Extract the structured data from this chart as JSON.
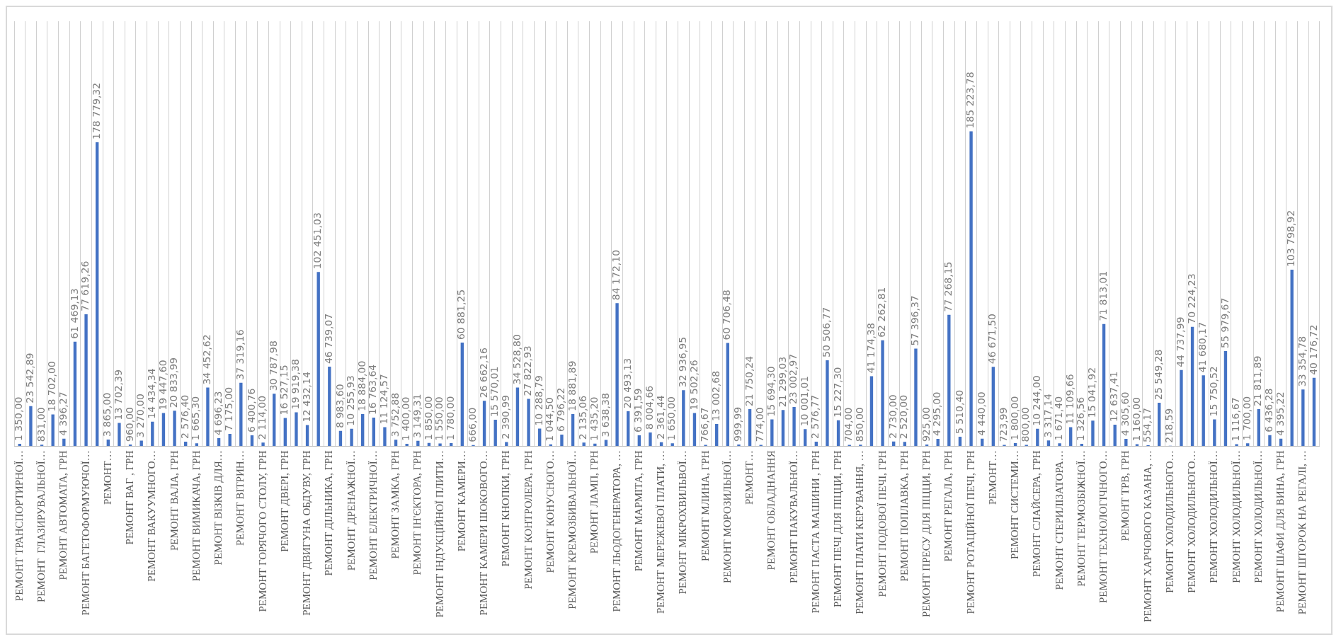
{
  "chart_data": {
    "type": "bar",
    "color": "#4472c4",
    "grid": "x",
    "categories": [
      "РЕМОНТ ТРАНСПОРТИРНОЇ…",
      null,
      "РЕМОНТ  ГЛАЗИРУВАЛЬНОЇ…",
      null,
      "РЕМОНТ АВТОМАТА, ГРН",
      null,
      "РЕМОНТ БАГЕТОФОРМУЮЧОЇ…",
      null,
      "РЕМОНТ…",
      null,
      "РЕМОНТ ВАГ , ГРН",
      null,
      "РЕМОНТ ВАКУУМНОГО…",
      null,
      "РЕМОНТ ВАЛА, ГРН",
      null,
      "РЕМОНТ ВИМИКАЧА, ГРН",
      null,
      "РЕМОНТ ВІЗКІВ ДЛЯ…",
      null,
      "РЕМОНТ ВІТРИН…",
      null,
      "РЕМОНТ ГОРЯЧОГО СТОЛУ, ГРН",
      null,
      "РЕМОНТ ДВЕРІ, ГРН",
      null,
      "РЕМОНТ ДВИГУНА ОБДУВУ, ГРН",
      null,
      "РЕМОНТ ДІЛЬНИКА, ГРН",
      null,
      "РЕМОНТ ДРЕНАЖНОЇ…",
      null,
      "РЕМОНТ ЕЛЕКТРИЧНОЇ…",
      null,
      "РЕМОНТ ЗАМКА, ГРН",
      null,
      "РЕМОНТ ІН'ЄКТОРА, ГРН",
      null,
      "РЕМОНТ ІНДУКЦІЙНОЇ ПЛИТИ…",
      null,
      "РЕМОНТ КАМЕРИ…",
      null,
      "РЕМОНТ КАМЕРИ ШОКОВОГО…",
      null,
      "РЕМОНТ КНОПКИ, ГРН",
      null,
      "РЕМОНТ КОНТРОЛЕРА, ГРН",
      null,
      "РЕМОНТ КОНУСНОГО…",
      null,
      "РЕМОНТ КРЕМОЗБИВАЛЬНОЇ…",
      null,
      "РЕМОНТ ЛАМП, ГРН",
      null,
      "РЕМОНТ ЛЬОДОГЕНЕРАТОРА, …",
      null,
      "РЕМОНТ МАРМІТА, ГРН",
      null,
      "РЕМОНТ МЕРЕЖЕВОЇ ПЛАТИ, …",
      null,
      "РЕМОНТ МІКРОХВИЛЬВОЇ…",
      null,
      "РЕМОНТ МЛИНА, ГРН",
      null,
      "РЕМОНТ МОРОЗИЛЬНОЇ…",
      null,
      "РЕМОНТ…",
      null,
      "РЕМОНТ ОБЛАДНАННЯ",
      null,
      "РЕМОНТ ПАКУВАЛЬНОЇ…",
      null,
      "РЕМОНТ ПАСТА МАШИНИ , ГРН",
      null,
      "РЕМОНТ ПЕЧІ ДЛЯ ПІЦЦИ, ГРН",
      null,
      "РЕМОНТ ПЛАТИ КЕРУВАННЯ, …",
      null,
      "РЕМОНТ ПОДОВОЇ ПЕЧІ, ГРН",
      null,
      "РЕМОНТ ПОПЛАВКА, ГРН",
      null,
      "РЕМОНТ ПРЕСУ ДЛЯ ПІЦЦИ, ГРН",
      null,
      "РЕМОНТ РЕГАЛА, ГРН",
      null,
      "РЕМОНТ РОТАЦІЙНОЇ ПЕЧІ, ГРН",
      null,
      "РЕМОНТ…",
      null,
      "РЕМОНТ СИСТЕМИ…",
      null,
      "РЕМОНТ СЛАЙСЕРА, ГРН",
      null,
      "РЕМОНТ СТЕРИЛІЗАТОРА…",
      null,
      "РЕМОНТ ТЕРМОЗБІЖНОЇ…",
      null,
      "РЕМОНТ ТЕХНОЛОГІЧНОГО…",
      null,
      "РЕМОНТ ТРВ, ГРН",
      null,
      "РЕМОНТ ХАРЧОВОГО КАЗАНА, …",
      null,
      "РЕМОНТ ХОЛОДИЛЬНОГО…",
      null,
      "РЕМОНТ ХОЛОДИЛЬНОГО…",
      null,
      "РЕМОНТ ХОЛОДИЛЬНОЇ…",
      null,
      "РЕМОНТ ХОЛОДИЛЬНОЇ…",
      null,
      "РЕМОНТ ХОЛОДИЛЬНОЇ…",
      null,
      "РЕМОНТ ШАФИ ДЛЯ ВИНА, ГРН",
      null,
      "РЕМОНТ ШТОРОК НА РЕГАЛІ, …",
      null
    ],
    "values": [
      1350.0,
      23542.89,
      831.0,
      18702.0,
      4396.27,
      61469.13,
      77619.26,
      178779.32,
      3865.0,
      13702.39,
      960.0,
      3270.0,
      14434.34,
      19447.6,
      20833.99,
      2576.4,
      1665.3,
      34452.62,
      4696.23,
      7175.0,
      37319.16,
      6400.76,
      2114.0,
      30787.98,
      16527.15,
      19919.38,
      12432.14,
      102451.03,
      46739.07,
      8983.6,
      10255.93,
      18884.0,
      16763.64,
      11124.57,
      3752.88,
      1400.0,
      3149.31,
      1850.0,
      1550.0,
      1780.0,
      60881.25,
      666.0,
      26662.16,
      15570.01,
      2390.99,
      34528.8,
      27822.93,
      10288.79,
      1044.5,
      6796.22,
      18881.89,
      2135.06,
      1435.2,
      3638.38,
      84172.1,
      20493.13,
      6391.59,
      8004.66,
      2361.44,
      1650.0,
      32936.95,
      19502.26,
      766.67,
      13002.68,
      60706.48,
      999.99,
      21750.24,
      774.0,
      15694.3,
      21299.03,
      23002.97,
      10001.01,
      2576.77,
      50506.77,
      15227.3,
      704.0,
      850.0,
      41174.38,
      62262.81,
      2730.0,
      2520.0,
      57396.37,
      925.0,
      4295.0,
      77268.15,
      5510.4,
      185223.78,
      4440.0,
      46671.5,
      723.99,
      1800.0,
      800.0,
      10244.0,
      3317.14,
      1671.4,
      11109.66,
      1326.56,
      15041.92,
      71813.01,
      12637.41,
      4305.6,
      1160.0,
      554.17,
      25549.28,
      218.59,
      44737.99,
      70224.23,
      41680.17,
      15750.52,
      55979.67,
      1116.67,
      1700.0,
      21811.89,
      6436.28,
      4395.22,
      103798.92,
      33354.78,
      40176.72
    ],
    "value_labels": [
      "1 350,00",
      "23 542,89",
      "831,00",
      "18 702,00",
      "4 396,27",
      "61 469,13",
      "77 619,26",
      "178 779,32",
      "3 865,00",
      "13 702,39",
      "960,00",
      "3 270,00",
      "14 434,34",
      "19 447,60",
      "20 833,99",
      "2 576,40",
      "1 665,30",
      "34 452,62",
      "4 696,23",
      "7 175,00",
      "37 319,16",
      "6 400,76",
      "2 114,00",
      "30 787,98",
      "16 527,15",
      "19 919,38",
      "12 432,14",
      "102 451,03",
      "46 739,07",
      "8 983,60",
      "10 255,93",
      "18 884,00",
      "16 763,64",
      "11 124,57",
      "3 752,88",
      "1 400,00",
      "3 149,31",
      "1 850,00",
      "1 550,00",
      "1 780,00",
      "60 881,25",
      "666,00",
      "26 662,16",
      "15 570,01",
      "2 390,99",
      "34 528,80",
      "27 822,93",
      "10 288,79",
      "1 044,50",
      "6 796,22",
      "18 881,89",
      "2 135,06",
      "1 435,20",
      "3 638,38",
      "84 172,10",
      "20 493,13",
      "6 391,59",
      "8 004,66",
      "2 361,44",
      "1 650,00",
      "32 936,95",
      "19 502,26",
      "766,67",
      "13 002,68",
      "60 706,48",
      "999,99",
      "21 750,24",
      "774,00",
      "15 694,30",
      "21 299,03",
      "23 002,97",
      "10 001,01",
      "2 576,77",
      "50 506,77",
      "15 227,30",
      "704,00",
      "850,00",
      "41 174,38",
      "62 262,81",
      "2 730,00",
      "2 520,00",
      "57 396,37",
      "925,00",
      "4 295,00",
      "77 268,15",
      "5 510,40",
      "185 223,78",
      "4 440,00",
      "46 671,50",
      "723,99",
      "1 800,00",
      "800,00",
      "10 244,00",
      "3 317,14",
      "1 671,40",
      "11 109,66",
      "1 326,56",
      "15 041,92",
      "71 813,01",
      "12 637,41",
      "4 305,60",
      "1 160,00",
      "554,17",
      "25 549,28",
      "218,59",
      "44 737,99",
      "70 224,23",
      "41 680,17",
      "15 750,52",
      "55 979,67",
      "1 116,67",
      "1 700,00",
      "21 811,89",
      "6 436,28",
      "4 395,22",
      "103 798,92",
      "33 354,78",
      "40 176,72"
    ]
  }
}
